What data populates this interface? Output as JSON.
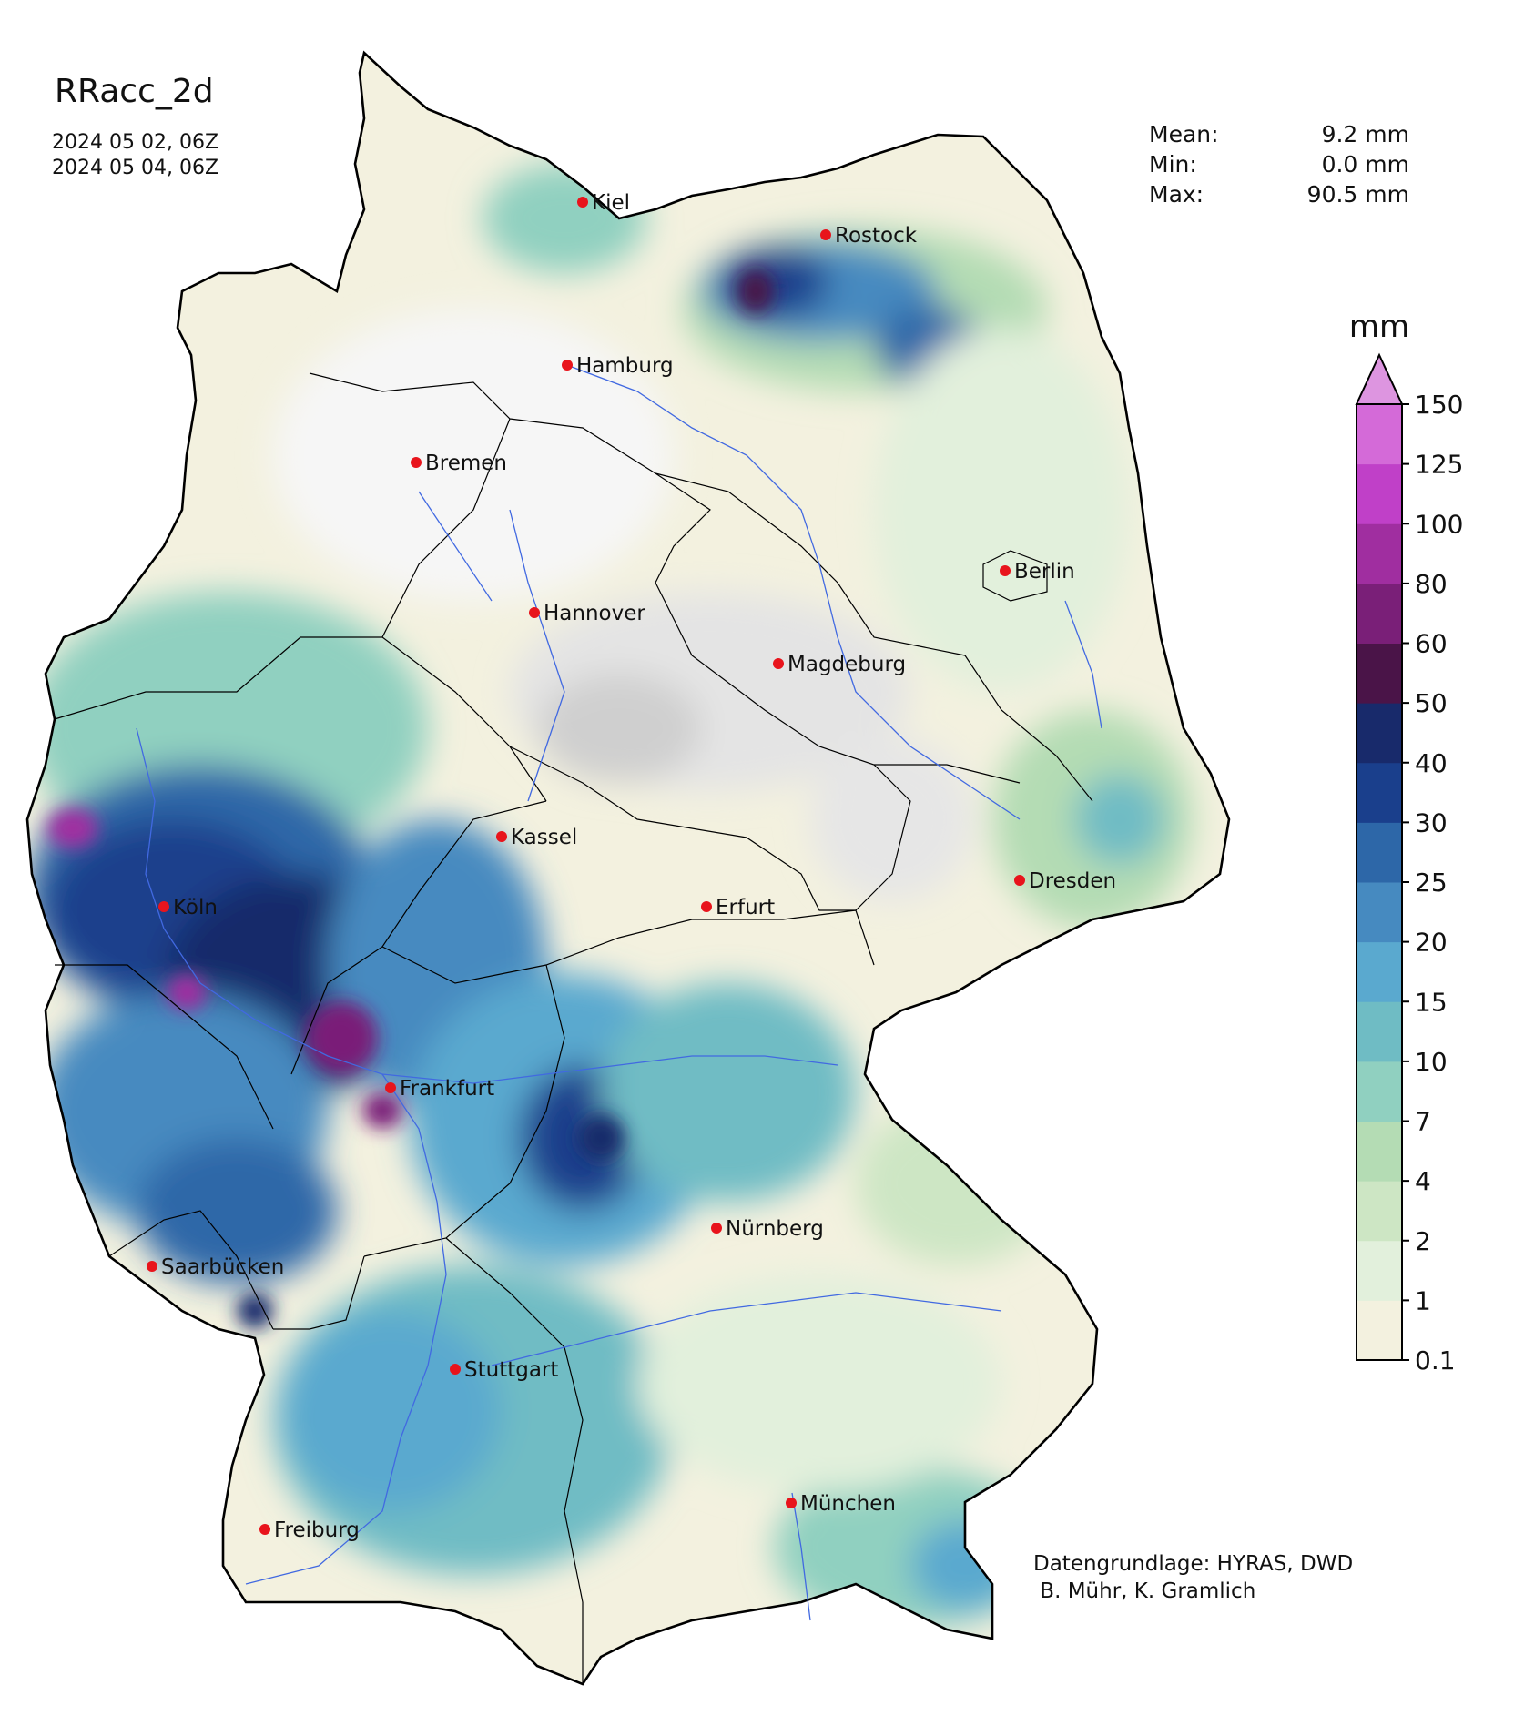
{
  "title": "RRacc_2d",
  "period": {
    "start": "2024 05 02, 06Z",
    "end": "2024 05 04, 06Z"
  },
  "stats": [
    {
      "label": "Mean:",
      "value": "9.2 mm"
    },
    {
      "label": "Min:",
      "value": "0.0 mm"
    },
    {
      "label": "Max:",
      "value": "90.5 mm"
    }
  ],
  "colorbar": {
    "unit": "mm",
    "levels": [
      {
        "label": "0.1",
        "color": "#f3f1df"
      },
      {
        "label": "1",
        "color": "#e2f0dc"
      },
      {
        "label": "2",
        "color": "#cde6c4"
      },
      {
        "label": "4",
        "color": "#b4dcb4"
      },
      {
        "label": "7",
        "color": "#90d0c0"
      },
      {
        "label": "10",
        "color": "#6fbcc4"
      },
      {
        "label": "15",
        "color": "#5aa9cf"
      },
      {
        "label": "20",
        "color": "#468ac0"
      },
      {
        "label": "25",
        "color": "#2d67a8"
      },
      {
        "label": "30",
        "color": "#1a3f8c"
      },
      {
        "label": "40",
        "color": "#182a6b"
      },
      {
        "label": "50",
        "color": "#4a1448"
      },
      {
        "label": "60",
        "color": "#7a1f78"
      },
      {
        "label": "80",
        "color": "#a02ea0"
      },
      {
        "label": "100",
        "color": "#c040c8"
      },
      {
        "label": "125",
        "color": "#d46ad8"
      },
      {
        "label": "150",
        "color": "#dd95e0"
      }
    ],
    "extend_color": "#dd95e0"
  },
  "cities": [
    {
      "name": "Kiel"
    },
    {
      "name": "Rostock"
    },
    {
      "name": "Hamburg"
    },
    {
      "name": "Bremen"
    },
    {
      "name": "Berlin"
    },
    {
      "name": "Hannover"
    },
    {
      "name": "Magdeburg"
    },
    {
      "name": "Kassel"
    },
    {
      "name": "Dresden"
    },
    {
      "name": "Köln"
    },
    {
      "name": "Erfurt"
    },
    {
      "name": "Frankfurt"
    },
    {
      "name": "Nürnberg"
    },
    {
      "name": "Saarbücken"
    },
    {
      "name": "Stuttgart"
    },
    {
      "name": "Freiburg"
    },
    {
      "name": "München"
    }
  ],
  "credits": {
    "line1": "Datengrundlage: HYRAS, DWD",
    "line2": " B. Mühr, K. Gramlich"
  },
  "colors": {
    "city_marker": "#e8141c",
    "river": "#4169e1",
    "border": "#000000"
  }
}
